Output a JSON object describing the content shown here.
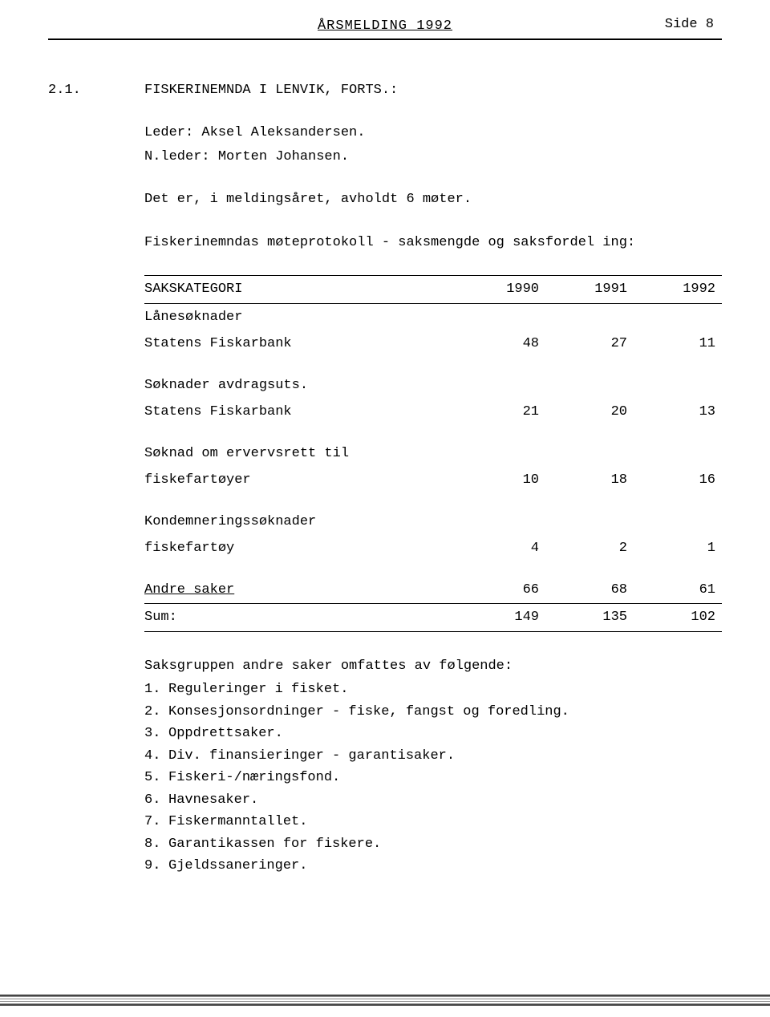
{
  "header": {
    "title": "ÅRSMELDING 1992",
    "page_label": "Side 8"
  },
  "section": {
    "number": "2.1.",
    "title": "FISKERINEMNDA I LENVIK, FORTS.:",
    "leder": "Leder: Aksel Aleksandersen.",
    "nleder": "N.leder: Morten Johansen.",
    "meetings": "Det er, i meldingsåret, avholdt 6 møter.",
    "protokoll_intro": "Fiskerinemndas møteprotokoll - saksmengde og saksfordel ing:"
  },
  "table": {
    "columns": [
      "SAKSKATEGORI",
      "1990",
      "1991",
      "1992"
    ],
    "rows": [
      {
        "cat": "Lånesøknader",
        "y1990": "",
        "y1991": "",
        "y1992": ""
      },
      {
        "cat": "Statens Fiskarbank",
        "y1990": "48",
        "y1991": "27",
        "y1992": "11"
      },
      {
        "cat": "Søknader avdragsuts.",
        "y1990": "",
        "y1991": "",
        "y1992": ""
      },
      {
        "cat": "Statens Fiskarbank",
        "y1990": "21",
        "y1991": "20",
        "y1992": "13"
      },
      {
        "cat": "Søknad om ervervsrett til",
        "y1990": "",
        "y1991": "",
        "y1992": ""
      },
      {
        "cat": "fiskefartøyer",
        "y1990": "10",
        "y1991": "18",
        "y1992": "16"
      },
      {
        "cat": "Kondemneringssøknader",
        "y1990": "",
        "y1991": "",
        "y1992": ""
      },
      {
        "cat": "fiskefartøy",
        "y1990": "4",
        "y1991": "2",
        "y1992": "1"
      }
    ],
    "andre": {
      "cat": "Andre saker",
      "y1990": "66",
      "y1991": "68",
      "y1992": "61"
    },
    "sum": {
      "cat": "Sum:",
      "y1990": "149",
      "y1991": "135",
      "y1992": "102"
    }
  },
  "saksgruppe": {
    "intro": "Saksgruppen andre saker omfattes av følgende:",
    "items": [
      "Reguleringer i fisket.",
      "Konsesjonsordninger - fiske, fangst og foredling.",
      "Oppdrettsaker.",
      "Div. finansieringer - garantisaker.",
      "Fiskeri-/næringsfond.",
      "Havnesaker.",
      "Fiskermanntallet.",
      "Garantikassen for fiskere.",
      "Gjeldssaneringer."
    ]
  }
}
